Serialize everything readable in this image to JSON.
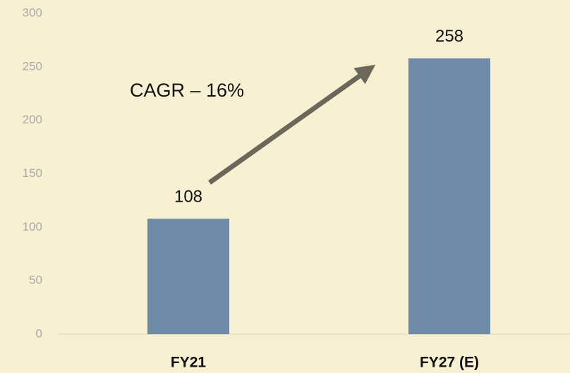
{
  "chart_data": {
    "type": "bar",
    "categories": [
      "FY21",
      "FY27 (E)"
    ],
    "values": [
      108,
      258
    ],
    "color": "#6f8ba7",
    "ylim": [
      0,
      300
    ],
    "yticks": [
      0,
      50,
      100,
      150,
      200,
      250,
      300
    ],
    "grid": false,
    "annotation": "CAGR – 16%"
  }
}
